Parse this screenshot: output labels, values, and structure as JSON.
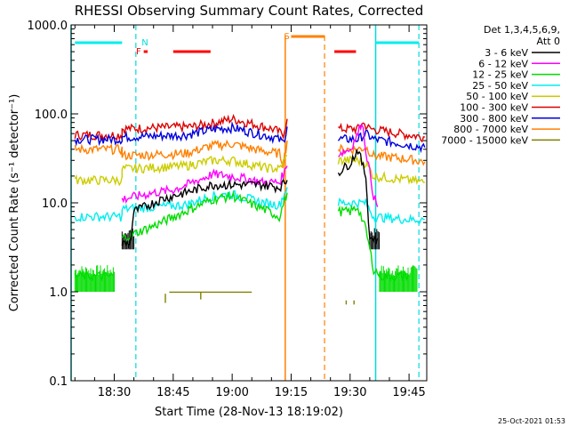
{
  "chart_data": {
    "type": "line",
    "title": "RHESSI Observing Summary Count Rates, Corrected",
    "xlabel": "Start Time (28-Nov-13 18:19:02)",
    "ylabel": "Corrected Count Rate (s⁻¹ detector⁻¹)",
    "yscale": "log",
    "ylim": [
      0.1,
      1000
    ],
    "xlim": [
      19.03,
      109.5
    ],
    "x_unit": "minutes after 18:00 UT",
    "xticks": [
      {
        "value": 30,
        "label": "18:30"
      },
      {
        "value": 45,
        "label": "18:45"
      },
      {
        "value": 60,
        "label": "19:00"
      },
      {
        "value": 75,
        "label": "19:15"
      },
      {
        "value": 90,
        "label": "19:30"
      },
      {
        "value": 105,
        "label": "19:45"
      }
    ],
    "yticks": [
      {
        "value": 0.1,
        "label": "0.1"
      },
      {
        "value": 1,
        "label": "1.0"
      },
      {
        "value": 10,
        "label": "10.0"
      },
      {
        "value": 100,
        "label": "100.0"
      },
      {
        "value": 1000,
        "label": "1000.0"
      }
    ],
    "legend": {
      "position": "top-right",
      "header": [
        "Det 1,3,4,5,6,9,",
        "Att 0"
      ],
      "entries": [
        {
          "label": "3 - 6 keV",
          "color": "#000000"
        },
        {
          "label": "6 - 12 keV",
          "color": "#ff00ff"
        },
        {
          "label": "12 - 25 keV",
          "color": "#00dd00"
        },
        {
          "label": "25 - 50 keV",
          "color": "#00eeee"
        },
        {
          "label": "50 - 100 keV",
          "color": "#cccc00"
        },
        {
          "label": "100 - 300 keV",
          "color": "#dd0000"
        },
        {
          "label": "300 - 800 keV",
          "color": "#0000dd"
        },
        {
          "label": "800 - 7000 keV",
          "color": "#ff8000"
        },
        {
          "label": "7000 - 15000 keV",
          "color": "#808000"
        }
      ]
    },
    "series": [
      {
        "name": "100 - 300 keV",
        "color": "#dd0000",
        "segments": [
          [
            [
              20,
              58
            ],
            [
              32,
              58
            ],
            [
              32,
              68
            ],
            [
              50,
              72
            ],
            [
              57,
              82
            ],
            [
              60,
              88
            ],
            [
              68,
              72
            ],
            [
              71,
              66
            ],
            [
              72,
              62
            ],
            [
              73,
              60
            ],
            [
              74,
              88
            ]
          ],
          [
            [
              87,
              68
            ],
            [
              92,
              68
            ],
            [
              93,
              80
            ],
            [
              95,
              68
            ],
            [
              105,
              58
            ],
            [
              109,
              55
            ]
          ]
        ]
      },
      {
        "name": "300 - 800 keV",
        "color": "#0000dd",
        "segments": [
          [
            [
              20,
              52
            ],
            [
              32,
              52
            ],
            [
              32,
              55
            ],
            [
              48,
              58
            ],
            [
              56,
              68
            ],
            [
              60,
              70
            ],
            [
              68,
              58
            ],
            [
              71,
              54
            ],
            [
              73,
              48
            ],
            [
              74,
              72
            ]
          ],
          [
            [
              87,
              52
            ],
            [
              92,
              52
            ],
            [
              94,
              60
            ],
            [
              96,
              52
            ],
            [
              105,
              45
            ],
            [
              109,
              42
            ]
          ]
        ]
      },
      {
        "name": "800 - 7000 keV",
        "color": "#ff8000",
        "segments": [
          [
            [
              20,
              40
            ],
            [
              32,
              40
            ],
            [
              32,
              34
            ],
            [
              48,
              36
            ],
            [
              55,
              44
            ],
            [
              60,
              46
            ],
            [
              68,
              38
            ],
            [
              72,
              36
            ],
            [
              73,
              28
            ],
            [
              74,
              50
            ]
          ],
          [
            [
              87,
              40
            ],
            [
              92,
              40
            ],
            [
              94,
              42
            ],
            [
              96,
              34
            ],
            [
              105,
              31
            ],
            [
              109,
              29
            ]
          ]
        ]
      },
      {
        "name": "50 - 100 keV",
        "color": "#cccc00",
        "segments": [
          [
            [
              20,
              18
            ],
            [
              32,
              18
            ],
            [
              32,
              24
            ],
            [
              48,
              26
            ],
            [
              55,
              30
            ],
            [
              60,
              30
            ],
            [
              68,
              25
            ],
            [
              72,
              24
            ],
            [
              74,
              34
            ]
          ],
          [
            [
              87,
              30
            ],
            [
              92,
              30
            ],
            [
              94,
              28
            ],
            [
              96,
              20
            ],
            [
              105,
              18
            ],
            [
              109,
              17
            ]
          ]
        ]
      },
      {
        "name": "25 - 50 keV",
        "color": "#00eeee",
        "segments": [
          [
            [
              20,
              7
            ],
            [
              32,
              7
            ],
            [
              32,
              8.5
            ],
            [
              48,
              9.5
            ],
            [
              55,
              12
            ],
            [
              60,
              12.5
            ],
            [
              68,
              10
            ],
            [
              72,
              9.5
            ],
            [
              74,
              15
            ]
          ],
          [
            [
              87,
              10
            ],
            [
              92,
              10
            ],
            [
              94,
              10
            ],
            [
              96,
              7
            ],
            [
              105,
              6.5
            ],
            [
              109,
              6.5
            ]
          ]
        ]
      },
      {
        "name": "6 - 12 keV",
        "color": "#ff00ff",
        "segments": [
          [
            [
              32,
              11
            ],
            [
              40,
              13
            ],
            [
              45,
              14
            ],
            [
              50,
              17
            ],
            [
              55,
              21
            ],
            [
              60,
              20
            ],
            [
              68,
              17
            ],
            [
              72,
              17
            ],
            [
              74,
              26
            ]
          ],
          [
            [
              87,
              36
            ],
            [
              90,
              40
            ],
            [
              92,
              60
            ],
            [
              93,
              85
            ],
            [
              94,
              40
            ],
            [
              96,
              12
            ],
            [
              97,
              9
            ]
          ]
        ]
      },
      {
        "name": "12 - 25 keV",
        "color": "#00dd00",
        "segments": [
          [
            [
              20,
              1.5
            ],
            [
              30,
              1.5
            ]
          ],
          [
            [
              32,
              4
            ],
            [
              40,
              5.5
            ],
            [
              48,
              8
            ],
            [
              55,
              11
            ],
            [
              60,
              12
            ],
            [
              68,
              8.5
            ],
            [
              72,
              7
            ],
            [
              74,
              13
            ]
          ],
          [
            [
              87,
              8
            ],
            [
              90,
              8
            ],
            [
              92,
              9
            ],
            [
              94,
              5
            ],
            [
              96,
              1.8
            ],
            [
              98,
              1.5
            ],
            [
              105,
              1.5
            ]
          ]
        ]
      },
      {
        "name": "3 - 6 keV",
        "color": "#000000",
        "segments": [
          [
            [
              32,
              3.5
            ],
            [
              34,
              3.5
            ],
            [
              35,
              8
            ],
            [
              42,
              11
            ],
            [
              48,
              13
            ],
            [
              55,
              16
            ],
            [
              60,
              16
            ],
            [
              68,
              16
            ],
            [
              72,
              15
            ],
            [
              74,
              18
            ]
          ],
          [
            [
              87,
              22
            ],
            [
              90,
              28
            ],
            [
              92,
              40
            ],
            [
              94,
              20
            ],
            [
              95,
              4
            ],
            [
              97,
              4
            ]
          ]
        ]
      },
      {
        "name": "7000 - 15000 keV",
        "color": "#808000",
        "segments": [
          [
            [
              44,
              0.99
            ],
            [
              60,
              0.99
            ],
            [
              65,
              0.99
            ]
          ],
          [
            [
              52,
              0.98
            ],
            [
              52,
              0.82
            ]
          ],
          [
            [
              43,
              0.95
            ],
            [
              43,
              0.75
            ]
          ],
          [
            [
              89,
              0.8
            ],
            [
              89,
              0.72
            ]
          ],
          [
            [
              91,
              0.8
            ],
            [
              91,
              0.72
            ]
          ]
        ]
      }
    ],
    "annotations": {
      "night_bars": [
        [
          20,
          32
        ]
      ],
      "flare_bars": [
        [
          37.5,
          38.5
        ],
        [
          45,
          54.5
        ],
        [
          86,
          91.5
        ]
      ],
      "saa_bars": [
        [
          75,
          83.5
        ]
      ],
      "cyan_bar_right": [
        [
          96.5,
          107.5
        ]
      ],
      "cyan_solid_lines": [
        19.03,
        96.5
      ],
      "cyan_dashed_lines": [
        35.5,
        107.5
      ],
      "orange_solid_lines": [
        73.5
      ],
      "orange_dashed_lines": [
        83.5
      ],
      "labels": [
        {
          "x": 36.2,
          "text": "F",
          "color": "#ff0000"
        },
        {
          "x": 37.8,
          "text": "N",
          "color": "#00dddd"
        },
        {
          "x": 73.9,
          "text": "S",
          "color": "#ff8000"
        }
      ]
    }
  },
  "timestamp": "25-Oct-2021 01:53"
}
